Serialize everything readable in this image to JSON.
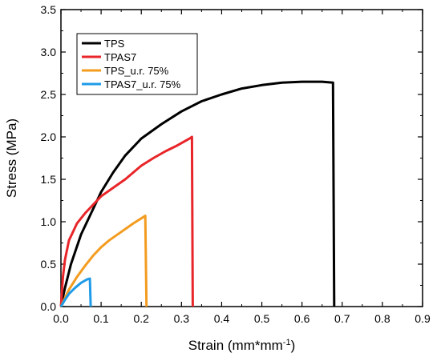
{
  "chart_data": {
    "type": "line",
    "xlabel": "Strain (mm*mm",
    "xlabel_superscript": "-1",
    "xlabel_suffix": ")",
    "ylabel": "Stress (MPa)",
    "xlim": [
      0.0,
      0.9
    ],
    "ylim": [
      0.0,
      3.5
    ],
    "x_ticks": [
      0.0,
      0.1,
      0.2,
      0.3,
      0.4,
      0.5,
      0.6,
      0.7,
      0.8,
      0.9
    ],
    "x_tick_labels": [
      "0.0",
      "0.1",
      "0.2",
      "0.3",
      "0.4",
      "0.5",
      "0.6",
      "0.7",
      "0.8",
      "0.9"
    ],
    "y_ticks": [
      0.0,
      0.5,
      1.0,
      1.5,
      2.0,
      2.5,
      3.0,
      3.5
    ],
    "y_tick_labels": [
      "0.0",
      "0.5",
      "1.0",
      "1.5",
      "2.0",
      "2.5",
      "3.0",
      "3.5"
    ],
    "grid": false,
    "legend_position": "top-left",
    "series": [
      {
        "name": "TPS",
        "color": "#000000",
        "points": [
          [
            0.0,
            0.0
          ],
          [
            0.01,
            0.22
          ],
          [
            0.025,
            0.5
          ],
          [
            0.05,
            0.85
          ],
          [
            0.08,
            1.15
          ],
          [
            0.1,
            1.35
          ],
          [
            0.13,
            1.58
          ],
          [
            0.16,
            1.78
          ],
          [
            0.2,
            1.98
          ],
          [
            0.25,
            2.15
          ],
          [
            0.3,
            2.3
          ],
          [
            0.35,
            2.42
          ],
          [
            0.4,
            2.5
          ],
          [
            0.45,
            2.57
          ],
          [
            0.5,
            2.61
          ],
          [
            0.55,
            2.64
          ],
          [
            0.6,
            2.65
          ],
          [
            0.65,
            2.65
          ],
          [
            0.677,
            2.64
          ],
          [
            0.68,
            0.0
          ]
        ]
      },
      {
        "name": "TPAS7",
        "color": "#e8262a",
        "points": [
          [
            0.0,
            0.0
          ],
          [
            0.005,
            0.35
          ],
          [
            0.01,
            0.55
          ],
          [
            0.02,
            0.78
          ],
          [
            0.04,
            0.98
          ],
          [
            0.06,
            1.1
          ],
          [
            0.08,
            1.2
          ],
          [
            0.1,
            1.3
          ],
          [
            0.13,
            1.4
          ],
          [
            0.16,
            1.5
          ],
          [
            0.2,
            1.66
          ],
          [
            0.23,
            1.75
          ],
          [
            0.26,
            1.83
          ],
          [
            0.29,
            1.9
          ],
          [
            0.32,
            1.98
          ],
          [
            0.326,
            2.0
          ],
          [
            0.328,
            0.0
          ]
        ]
      },
      {
        "name": "TPS_u.r. 75%",
        "color": "#f39c1f",
        "points": [
          [
            0.0,
            0.0
          ],
          [
            0.02,
            0.2
          ],
          [
            0.04,
            0.35
          ],
          [
            0.06,
            0.48
          ],
          [
            0.08,
            0.6
          ],
          [
            0.1,
            0.7
          ],
          [
            0.12,
            0.78
          ],
          [
            0.15,
            0.88
          ],
          [
            0.18,
            0.98
          ],
          [
            0.2,
            1.04
          ],
          [
            0.21,
            1.07
          ],
          [
            0.213,
            0.0
          ]
        ]
      },
      {
        "name": "TPAS7_u.r. 75%",
        "color": "#1f9be8",
        "points": [
          [
            0.0,
            0.0
          ],
          [
            0.01,
            0.08
          ],
          [
            0.02,
            0.15
          ],
          [
            0.035,
            0.22
          ],
          [
            0.05,
            0.28
          ],
          [
            0.065,
            0.32
          ],
          [
            0.072,
            0.33
          ],
          [
            0.074,
            0.0
          ]
        ]
      }
    ]
  }
}
